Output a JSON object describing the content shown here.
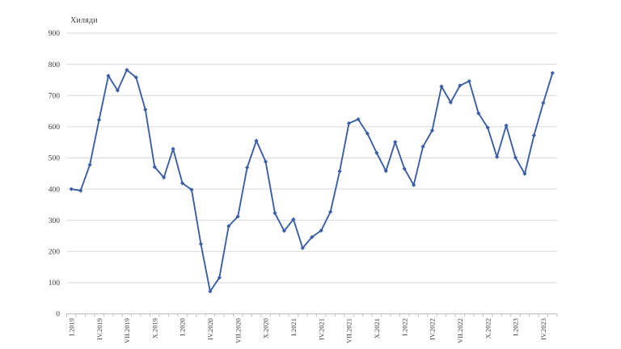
{
  "chart_data": {
    "type": "line",
    "title": "",
    "ylabel": "Хиляди",
    "xlabel": "",
    "legend": "none",
    "grid": true,
    "ylim": [
      0,
      900
    ],
    "yticks": [
      0,
      100,
      200,
      300,
      400,
      500,
      600,
      700,
      800,
      900
    ],
    "x_label_every": 3,
    "visible_x_labels": [
      "I.2019",
      "IV.2019",
      "VII.2019",
      "X.2019",
      "I.2020",
      "IV.2020",
      "VII.2020",
      "X.2020",
      "I.2021",
      "IV.2021",
      "VII.2021",
      "X.2021",
      "I.2022",
      "IV.2022",
      "VII.2022",
      "X.2022",
      "I.2023",
      "IV.2023"
    ],
    "x": [
      "I.2019",
      "II.2019",
      "III.2019",
      "IV.2019",
      "V.2019",
      "VI.2019",
      "VII.2019",
      "VIII.2019",
      "IX.2019",
      "X.2019",
      "XI.2019",
      "XII.2019",
      "I.2020",
      "II.2020",
      "III.2020",
      "IV.2020",
      "V.2020",
      "VI.2020",
      "VII.2020",
      "VIII.2020",
      "IX.2020",
      "X.2020",
      "XI.2020",
      "XII.2020",
      "I.2021",
      "II.2021",
      "III.2021",
      "IV.2021",
      "V.2021",
      "VI.2021",
      "VII.2021",
      "VIII.2021",
      "IX.2021",
      "X.2021",
      "XI.2021",
      "XII.2021",
      "I.2022",
      "II.2022",
      "III.2022",
      "IV.2022",
      "V.2022",
      "VI.2022",
      "VII.2022",
      "VIII.2022",
      "IX.2022",
      "X.2022",
      "XI.2022",
      "XII.2022",
      "I.2023",
      "II.2023",
      "III.2023",
      "IV.2023",
      "V.2023"
    ],
    "values": [
      400,
      395,
      478,
      622,
      763,
      716,
      782,
      758,
      655,
      471,
      437,
      529,
      419,
      398,
      224,
      72,
      116,
      281,
      312,
      469,
      555,
      488,
      323,
      266,
      303,
      211,
      246,
      267,
      327,
      457,
      611,
      624,
      578,
      516,
      458,
      551,
      465,
      413,
      536,
      588,
      729,
      678,
      732,
      746,
      643,
      597,
      503,
      604,
      501,
      449,
      572,
      676,
      772
    ],
    "marker": "diamond",
    "colors": {
      "line": "#3B5EA6",
      "marker": "#3B5EA6",
      "gridline": "#D9D9D9",
      "axis_line": "#BFBFBF",
      "text": "#404040"
    }
  }
}
